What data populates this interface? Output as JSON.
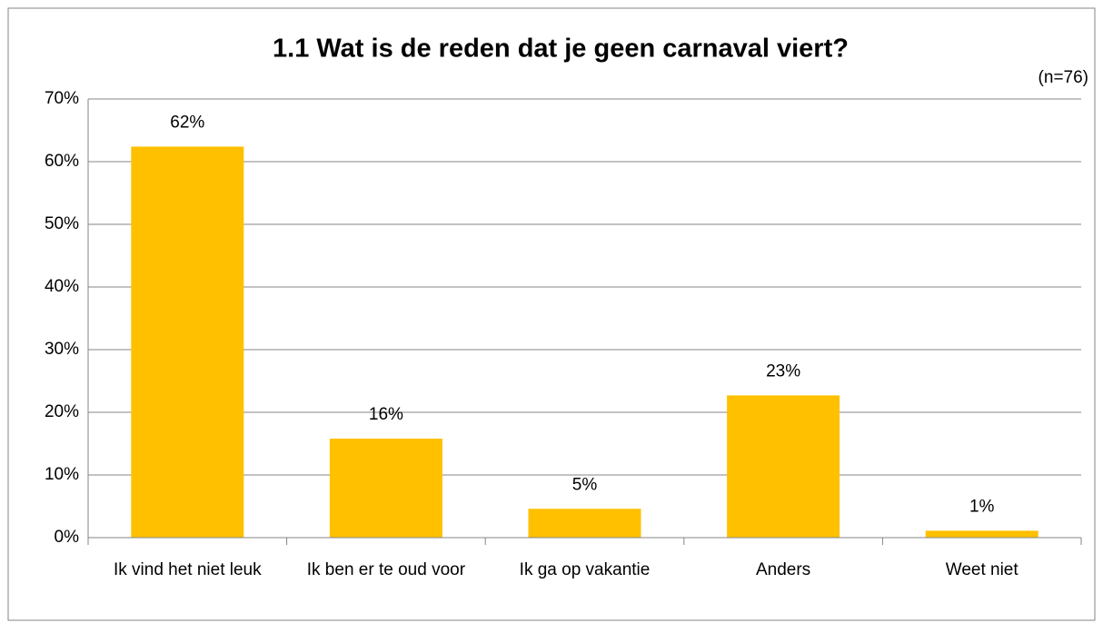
{
  "chart_data": {
    "type": "bar",
    "title": "1.1 Wat is de reden dat je geen carnaval viert?",
    "subtitle": "(n=76)",
    "categories": [
      "Ik vind het niet leuk",
      "Ik ben er te oud voor",
      "Ik ga op vakantie",
      "Anders",
      "Weet niet"
    ],
    "values": [
      62.4,
      15.8,
      4.6,
      22.7,
      1.1
    ],
    "value_labels": [
      "62%",
      "16%",
      "5%",
      "23%",
      "1%"
    ],
    "color": "#FFC000",
    "ylim": [
      0,
      70
    ],
    "yticks": [
      {
        "value": 0,
        "label": "0%"
      },
      {
        "value": 10,
        "label": "10%"
      },
      {
        "value": 20,
        "label": "20%"
      },
      {
        "value": 30,
        "label": "30%"
      },
      {
        "value": 40,
        "label": "40%"
      },
      {
        "value": 50,
        "label": "50%"
      },
      {
        "value": 60,
        "label": "60%"
      },
      {
        "value": 70,
        "label": "70%"
      }
    ],
    "grid": true
  }
}
